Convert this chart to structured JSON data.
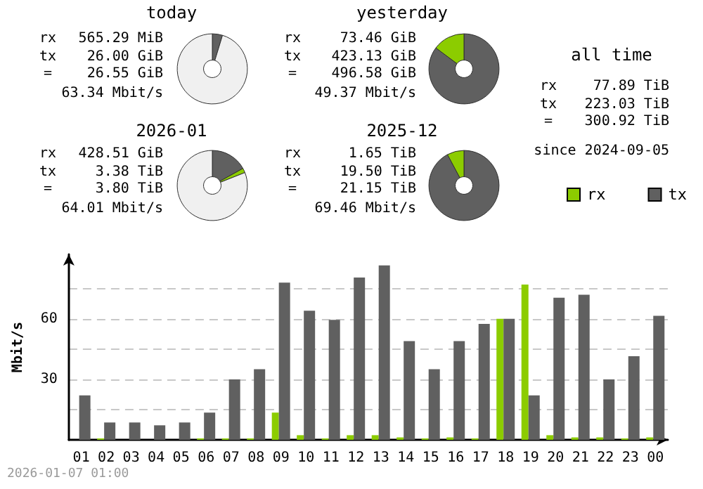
{
  "chart_data": [
    {
      "type": "donut",
      "title": "today",
      "categories": [
        null,
        null,
        null
      ],
      "values": [
        4.7,
        null,
        95.3
      ],
      "colors": [
        "#606060",
        "#8ccc00",
        "#f0f0f0"
      ],
      "annotations": [
        "rx",
        "565.29 MiB",
        "tx",
        "26.00 GiB",
        "=",
        "26.55 GiB",
        "63.34 Mbit/s"
      ]
    },
    {
      "type": "donut",
      "title": "yesterday",
      "categories": [
        null,
        null
      ],
      "values": [
        85.2,
        14.8
      ],
      "colors": [
        "#606060",
        "#8ccc00"
      ],
      "annotations": [
        "rx",
        "73.46 GiB",
        "tx",
        "423.13 GiB",
        "=",
        "496.58 GiB",
        "49.37 Mbit/s"
      ]
    },
    {
      "type": "donut",
      "title": "2026-01",
      "categories": [
        null,
        null,
        null
      ],
      "values": [
        16.9,
        2.1,
        81.0
      ],
      "colors": [
        "#606060",
        "#8ccc00",
        "#f0f0f0"
      ],
      "annotations": [
        "rx",
        "428.51 GiB",
        "tx",
        "3.38 TiB",
        "=",
        "3.80 TiB",
        "64.01 Mbit/s"
      ]
    },
    {
      "type": "donut",
      "title": "2025-12",
      "categories": [
        null,
        null
      ],
      "values": [
        92.2,
        7.8
      ],
      "colors": [
        "#606060",
        "#8ccc00"
      ],
      "annotations": [
        "rx",
        "1.65 TiB",
        "tx",
        "19.50 TiB",
        "=",
        "21.15 TiB",
        "69.46 Mbit/s"
      ]
    },
    {
      "type": "other",
      "title": "all time",
      "annotations": [
        "rx",
        "77.89 TiB",
        "tx",
        "223.03 TiB",
        "=",
        "300.92 TiB",
        "since 2024-09-05"
      ]
    },
    {
      "type": "bar",
      "ylabel": "Mbit/s",
      "categories": [
        "01",
        "02",
        "03",
        "04",
        "05",
        "06",
        "07",
        "08",
        "09",
        "10",
        "11",
        "12",
        "13",
        "14",
        "15",
        "16",
        "17",
        "18",
        "19",
        "20",
        "21",
        "22",
        "23",
        "00"
      ],
      "series": [
        {
          "name": "rx",
          "color": "#8ccc00",
          "values": [
            0,
            0.7,
            0,
            0,
            0,
            0.7,
            0.7,
            0.7,
            13.5,
            2.3,
            0.7,
            2.3,
            2.3,
            1.2,
            0.7,
            1.2,
            0.7,
            60,
            77,
            2.3,
            1.2,
            1.2,
            0.7,
            1.2
          ]
        },
        {
          "name": "tx",
          "color": "#606060",
          "values": [
            22,
            8.6,
            8.6,
            7.2,
            8.6,
            13.5,
            30,
            35,
            78,
            64,
            59.5,
            80.5,
            86.5,
            49,
            35,
            49,
            57.5,
            60,
            22,
            70.5,
            72,
            30,
            41.5,
            61.5
          ]
        }
      ],
      "ylim": [
        0,
        92
      ],
      "yticks": [
        {
          "value": 15,
          "label": null
        },
        30,
        {
          "value": 45,
          "label": null
        },
        60,
        {
          "value": 75,
          "label": null
        }
      ],
      "grid": "y",
      "legend": "top right",
      "annotations": [
        "2026-01-07 01:00"
      ]
    }
  ]
}
